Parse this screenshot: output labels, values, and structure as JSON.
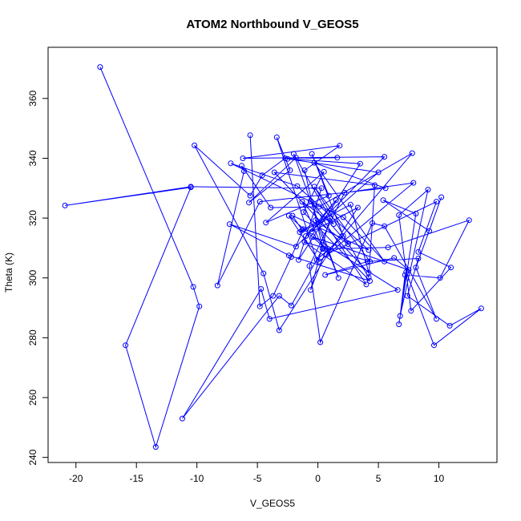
{
  "chart_data": {
    "type": "line",
    "title": "ATOM2 Northbound V_GEOS5",
    "xlabel": "V_GEOS5",
    "ylabel": "Theta (K)",
    "xlim": [
      -22.3,
      14.8
    ],
    "ylim": [
      238.3,
      377.1
    ],
    "xticks": [
      -20,
      -15,
      -10,
      -5,
      0,
      5,
      10
    ],
    "yticks": [
      240,
      260,
      280,
      300,
      320,
      340,
      360
    ],
    "grid": false,
    "legend": "none",
    "colors": {
      "series": "#0000ff",
      "axis": "#000000"
    },
    "series": [
      {
        "marker": "circle",
        "x": [
          -18.0,
          -10.3,
          -9.8,
          -13.4,
          -15.9,
          -10.5,
          -20.9,
          -10.5,
          0.3,
          -1.6,
          3.5,
          -2.5,
          5.0,
          -1.0,
          1.5,
          -0.5,
          3.3,
          -3.2,
          -4.5,
          -10.2,
          -5.6,
          -4.6,
          -2.7,
          1.6,
          -1.8,
          -5.7,
          -2.3,
          -3.4,
          -0.1,
          2.1,
          -0.5,
          0.9,
          -4.3,
          0.5,
          -1.2,
          4.3,
          -2.4,
          -7.3,
          -1.8,
          5.5,
          -6.2,
          1.8,
          -1.1,
          0.4,
          -1.3,
          1.3,
          -2.0,
          1.7,
          -0.2,
          2.5,
          -0.6,
          4.0,
          -1.1,
          4.3,
          -0.3,
          4.2,
          4.7,
          -3.6,
          4.2,
          2.7,
          -1.3,
          -2.1,
          4.2,
          -1.7,
          -7.2,
          2.1,
          5.5,
          -0.3,
          5.6,
          -4.8,
          -8.3,
          -6.1,
          -6.3,
          -3.9,
          0.1,
          7.8,
          0.7,
          9.8,
          8.3,
          11.0,
          7.7,
          6.7,
          9.1,
          6.8,
          7.2,
          10.1,
          12.5,
          5.8,
          0.4,
          -2.2,
          -3.2,
          -11.2,
          -4.7,
          -4.0,
          6.6,
          -0.4,
          7.5,
          6.3,
          0.6,
          4.1,
          8.3,
          7.4,
          10.9,
          13.5,
          9.6,
          7.3,
          6.7,
          8.1,
          5.4,
          9.2,
          10.2,
          8.1,
          9.8,
          5.5,
          4.5,
          0.2,
          -0.7,
          2.2,
          7.9,
          0.1,
          -2.4,
          0.7,
          -0.6,
          1.0,
          -1.5,
          -1.2,
          -2.2,
          -3.7,
          -4.8,
          -5.6
        ],
        "y": [
          370.5,
          297.0,
          290.5,
          243.5,
          277.5,
          330.3,
          324.2,
          330.5,
          330.0,
          306.0,
          338.2,
          339.8,
          335.3,
          314.0,
          326.0,
          315.5,
          323.5,
          282.5,
          301.5,
          344.3,
          327.5,
          334.3,
          340.0,
          340.2,
          340.2,
          325.2,
          336.0,
          347.0,
          306.0,
          314.0,
          341.5,
          327.5,
          318.5,
          335.5,
          322.0,
          299.0,
          307.5,
          318.0,
          310.5,
          340.5,
          340.0,
          344.2,
          336.0,
          310.0,
          325.5,
          318.0,
          341.5,
          300.0,
          319.3,
          311.3,
          325.8,
          297.8,
          312.0,
          305.5,
          330.5,
          300.2,
          331.0,
          335.3,
          301.7,
          324.5,
          316.0,
          320.8,
          309.3,
          330.7,
          338.3,
          320.3,
          305.5,
          338.5,
          330.0,
          325.5,
          297.5,
          335.7,
          337.5,
          323.5,
          323.8,
          341.7,
          307.8,
          325.5,
          308.7,
          303.5,
          289.0,
          321.0,
          329.5,
          287.3,
          301.0,
          300.0,
          319.3,
          310.2,
          309.7,
          290.8,
          294.0,
          253.0,
          296.3,
          286.3,
          296.0,
          313.7,
          302.7,
          306.7,
          301.0,
          305.5,
          306.5,
          294.0,
          284.0,
          289.8,
          277.5,
          302.0,
          284.5,
          321.5,
          326.0,
          315.7,
          327.0,
          303.5,
          286.3,
          317.3,
          318.3,
          278.5,
          304.0,
          328.5,
          331.8,
          305.5,
          320.8,
          309.5,
          296.0,
          320.0,
          315.3,
          316.3,
          307.0,
          294.0,
          290.5,
          347.7
        ]
      }
    ]
  }
}
